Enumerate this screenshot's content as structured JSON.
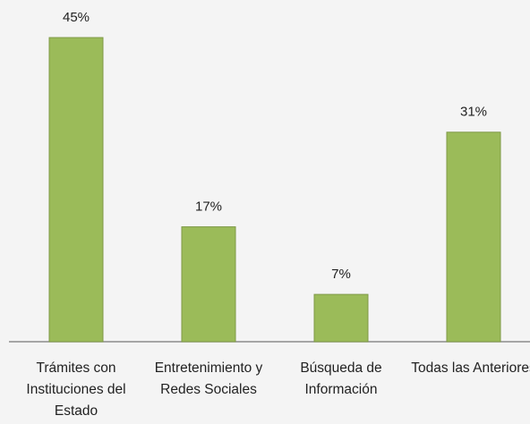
{
  "chart_data": {
    "type": "bar",
    "categories": [
      "Trámites con Instituciones del Estado",
      "Entretenimiento y Redes Sociales",
      "Búsqueda de Información",
      "Todas las Anteriores"
    ],
    "values": [
      45,
      17,
      7,
      31
    ],
    "value_labels": [
      "45%",
      "17%",
      "7%",
      "31%"
    ],
    "color": "#9bbb59"
  }
}
